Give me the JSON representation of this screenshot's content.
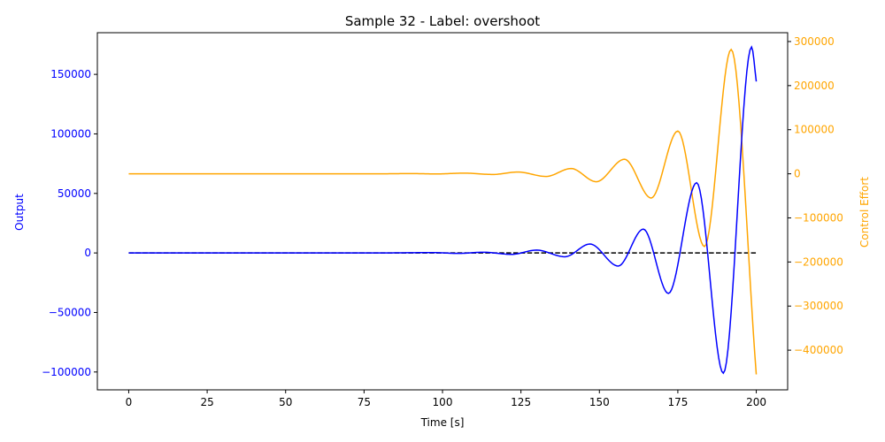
{
  "chart_data": {
    "type": "line",
    "title": "Sample 32 - Label: overshoot",
    "xlabel": "Time [s]",
    "ylabel_left": "Output",
    "ylabel_right": "Control Effort",
    "xlim": [
      -10,
      210
    ],
    "ylim_left": [
      -115000,
      185000
    ],
    "ylim_right": [
      -490000,
      320000
    ],
    "xticks": [
      0,
      25,
      50,
      75,
      100,
      125,
      150,
      175,
      200
    ],
    "xtick_labels": [
      "0",
      "25",
      "50",
      "75",
      "100",
      "125",
      "150",
      "175",
      "200"
    ],
    "yticks_left": [
      -100000,
      -50000,
      0,
      50000,
      100000,
      150000
    ],
    "ytick_labels_left": [
      "−100000",
      "−50000",
      "0",
      "50000",
      "100000",
      "150000"
    ],
    "yticks_right": [
      -400000,
      -300000,
      -200000,
      -100000,
      0,
      100000,
      200000,
      300000
    ],
    "ytick_labels_right": [
      "−400000",
      "−300000",
      "−200000",
      "−100000",
      "0",
      "100000",
      "200000",
      "300000"
    ],
    "colors": {
      "output": "#0000ff",
      "control": "#ffa500",
      "reference": "#000000",
      "axis_left": "#0000ff",
      "axis_right": "#ffa500"
    },
    "grid": false,
    "series": [
      {
        "axis": "left",
        "style": "solid",
        "x": [
          0,
          80,
          97,
          105,
          113,
          122,
          130,
          139,
          147,
          156,
          164,
          172,
          181,
          189.5,
          198.5,
          200
        ],
        "y": [
          0,
          0,
          300,
          -400,
          600,
          -1200,
          2400,
          -3200,
          7500,
          -11000,
          20000,
          -34000,
          59000,
          -101000,
          173000,
          144000
        ]
      },
      {
        "axis": "right",
        "style": "solid",
        "x": [
          0,
          80,
          90,
          98,
          107,
          116,
          124,
          133,
          141,
          149,
          158,
          166.5,
          175,
          183.5,
          192,
          200
        ],
        "y": [
          0,
          0,
          500,
          -300,
          1500,
          -1500,
          4000,
          -6000,
          12000,
          -18000,
          33000,
          -55000,
          97000,
          -165000,
          282000,
          -455000
        ]
      },
      {
        "axis": "left",
        "style": "dashed",
        "x": [
          0,
          200
        ],
        "y": [
          0,
          0
        ]
      }
    ]
  }
}
